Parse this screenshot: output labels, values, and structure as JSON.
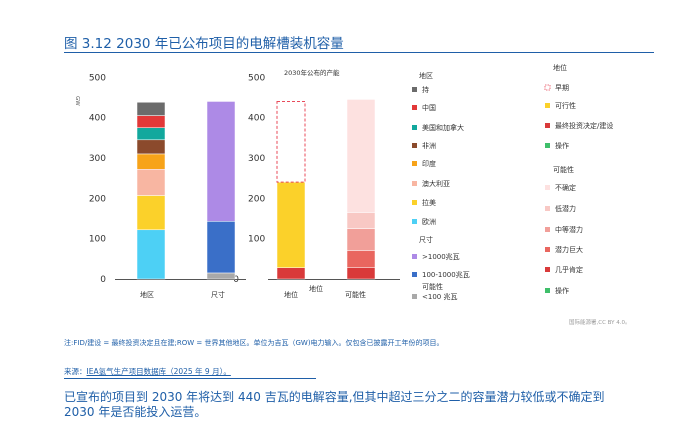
{
  "title": "图 3.12 2030 年已公布项目的电解槽装机容量",
  "chart_data": {
    "type": "bar",
    "stacked": true,
    "ylim": [
      0,
      500
    ],
    "yticks": [
      0,
      100,
      200,
      300,
      400,
      500
    ],
    "unit_label": "GW",
    "panel_title": "2030年公布的产能",
    "categories": [
      "地区",
      "尺寸",
      "地位",
      "可能性"
    ],
    "stacks": [
      {
        "category": "地区",
        "segments": [
          {
            "name": "欧洲",
            "value": 122,
            "color": "#4dd0f5"
          },
          {
            "name": "拉美",
            "value": 85,
            "color": "#fbd12a"
          },
          {
            "name": "澳大利亚",
            "value": 65,
            "color": "#f8b6a2"
          },
          {
            "name": "印度",
            "value": 38,
            "color": "#f7a319"
          },
          {
            "name": "非洲",
            "value": 35,
            "color": "#8b4a2c"
          },
          {
            "name": "美国和加拿大",
            "value": 30,
            "color": "#12a89d"
          },
          {
            "name": "中国",
            "value": 30,
            "color": "#e23838"
          },
          {
            "name": "持",
            "value": 33,
            "color": "#6b6b6b"
          }
        ]
      },
      {
        "category": "尺寸",
        "segments": [
          {
            "name": "<100 兆瓦",
            "value": 15,
            "color": "#a9a9a9"
          },
          {
            "name": "100-1000兆瓦",
            "value": 128,
            "color": "#3a6fc8"
          },
          {
            "name": ">1000兆瓦",
            "value": 297,
            "color": "#ad8ae6"
          }
        ]
      },
      {
        "category": "地位",
        "segments": [
          {
            "name": "最终投资决定/建设",
            "value": 28,
            "color": "#d93a3a"
          },
          {
            "name": "可行性",
            "value": 212,
            "color": "#fbd12a"
          },
          {
            "name": "早期",
            "value": 200,
            "color": "#ffffff",
            "stroke": "#e84a5a",
            "dashed": true
          }
        ]
      },
      {
        "category": "可能性",
        "segments": [
          {
            "name": "几乎肯定",
            "value": 28,
            "color": "#d93a3a"
          },
          {
            "name": "潜力巨大",
            "value": 42,
            "color": "#e9665f"
          },
          {
            "name": "中等潜力",
            "value": 55,
            "color": "#f19f99"
          },
          {
            "name": "低潜力",
            "value": 40,
            "color": "#f8c8c4"
          },
          {
            "name": "不确定",
            "value": 280,
            "color": "#fde1e0"
          }
        ]
      }
    ],
    "legend_left": {
      "region_title": "地区",
      "region_items": [
        {
          "label": "持",
          "color": "#6b6b6b"
        },
        {
          "label": "中国",
          "color": "#e23838"
        },
        {
          "label": "美国和加拿大",
          "color": "#12a89d"
        },
        {
          "label": "非洲",
          "color": "#8b4a2c"
        },
        {
          "label": "印度",
          "color": "#f7a319"
        },
        {
          "label": "澳大利亚",
          "color": "#f8b6a2"
        },
        {
          "label": "拉美",
          "color": "#fbd12a"
        },
        {
          "label": "欧洲",
          "color": "#4dd0f5"
        }
      ],
      "size_title": "尺寸",
      "size_items": [
        {
          "label": ">1000兆瓦",
          "color": "#ad8ae6"
        },
        {
          "label": "100-1000兆瓦",
          "color": "#3a6fc8"
        },
        {
          "label": "<100 兆瓦",
          "color": "#a9a9a9"
        }
      ],
      "extra_label_1": "地位",
      "extra_label_2": "可能性"
    },
    "legend_right": {
      "status_title": "地位",
      "status_items": [
        {
          "label": "早期",
          "color": "#e84a5a",
          "dashed": true
        },
        {
          "label": "可行性",
          "color": "#fbd12a"
        },
        {
          "label": "最终投资决定/建设",
          "color": "#d93a3a"
        },
        {
          "label": "操作",
          "color": "#3fbf6a"
        }
      ],
      "likelihood_title": "可能性",
      "likelihood_items": [
        {
          "label": "不确定",
          "color": "#fde1e0"
        },
        {
          "label": "低潜力",
          "color": "#f8c8c4"
        },
        {
          "label": "中等潜力",
          "color": "#f19f99"
        },
        {
          "label": "潜力巨大",
          "color": "#e9665f"
        },
        {
          "label": "几乎肯定",
          "color": "#d93a3a"
        },
        {
          "label": "操作",
          "color": "#3fbf6a"
        }
      ]
    }
  },
  "note": "注:FID/建设 = 最终投资决定且在建;ROW = 世界其他地区。单位为吉瓦（GW)电力输入。仅包含已披露开工年份的项目。",
  "source_prefix": "来源：",
  "source_link": "IEA氢气生产项目数据库（2025 年 9 月）。",
  "credit": "国际能源署,CC BY 4.0。",
  "summary": "已宣布的项目到 2030 年将达到 440 吉瓦的电解容量,但其中超过三分之二的容量潜力较低或不确定到 2030 年是否能投入运营。"
}
